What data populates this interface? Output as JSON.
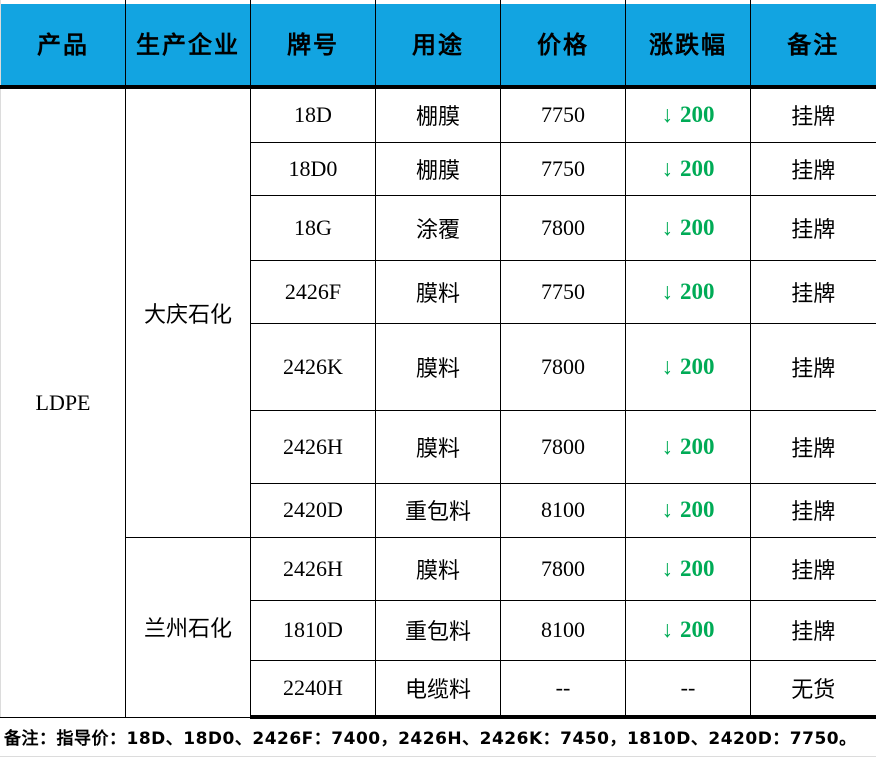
{
  "table": {
    "columns": [
      "产品",
      "生产企业",
      "牌号",
      "用途",
      "价格",
      "涨跌幅",
      "备注"
    ],
    "product": "LDPE",
    "producers": [
      {
        "name": "大庆石化"
      },
      {
        "name": "兰州石化"
      }
    ],
    "rows": [
      {
        "grade": "18D",
        "use": "棚膜",
        "price": "7750",
        "arrow": "↓",
        "change": "200",
        "note": "挂牌"
      },
      {
        "grade": "18D0",
        "use": "棚膜",
        "price": "7750",
        "arrow": "↓",
        "change": "200",
        "note": "挂牌"
      },
      {
        "grade": "18G",
        "use": "涂覆",
        "price": "7800",
        "arrow": "↓",
        "change": "200",
        "note": "挂牌"
      },
      {
        "grade": "2426F",
        "use": "膜料",
        "price": "7750",
        "arrow": "↓",
        "change": "200",
        "note": "挂牌"
      },
      {
        "grade": "2426K",
        "use": "膜料",
        "price": "7800",
        "arrow": "↓",
        "change": "200",
        "note": "挂牌"
      },
      {
        "grade": "2426H",
        "use": "膜料",
        "price": "7800",
        "arrow": "↓",
        "change": "200",
        "note": "挂牌"
      },
      {
        "grade": "2420D",
        "use": "重包料",
        "price": "8100",
        "arrow": "↓",
        "change": "200",
        "note": "挂牌"
      },
      {
        "grade": "2426H",
        "use": "膜料",
        "price": "7800",
        "arrow": "↓",
        "change": "200",
        "note": "挂牌"
      },
      {
        "grade": "1810D",
        "use": "重包料",
        "price": "8100",
        "arrow": "↓",
        "change": "200",
        "note": "挂牌"
      },
      {
        "grade": "2240H",
        "use": "电缆料",
        "price": "--",
        "change": "--",
        "note": "无货"
      }
    ]
  },
  "footer_note": "备注：指导价：18D、18D0、2426F：7400，2426H、2426K：7450，1810D、2420D：7750。",
  "colors": {
    "header_bg": "#12a4e1",
    "change_down": "#00ab56",
    "border": "#000000",
    "gridline": "#dcdcdc"
  }
}
